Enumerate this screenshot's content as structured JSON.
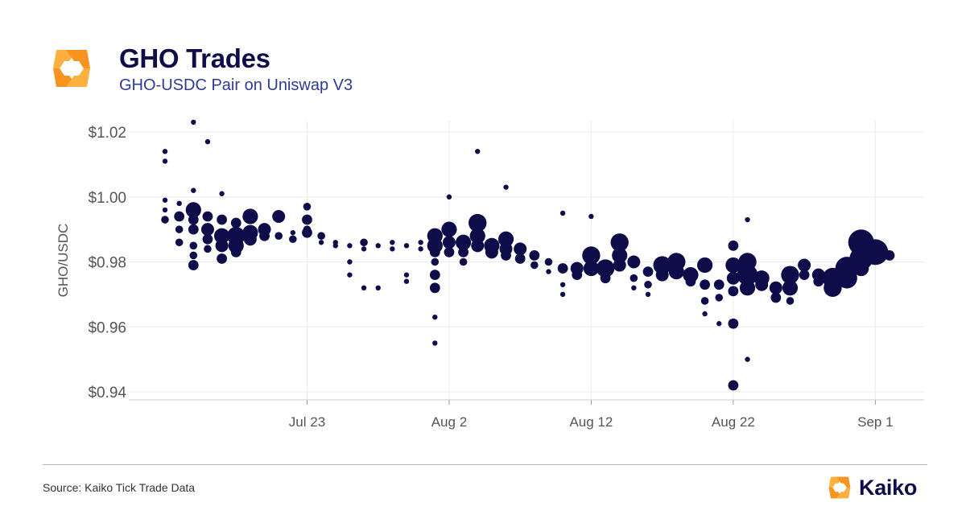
{
  "header": {
    "title": "GHO Trades",
    "subtitle": "GHO-USDC Pair on Uniswap V3"
  },
  "footer": {
    "source": "Source: Kaiko Tick Trade Data",
    "brand_name": "Kaiko"
  },
  "colors": {
    "points": "#0e0d4a",
    "logo_orange": "#f7931e",
    "logo_orange_light": "#fbb040",
    "grid": "#ebebeb"
  },
  "icons": [
    "kaiko-logo-icon"
  ],
  "chart_data": {
    "type": "scatter",
    "title": "GHO Trades",
    "subtitle": "GHO-USDC Pair on Uniswap V3",
    "ylabel": "GHO/USDC",
    "xlabel": "",
    "x_ticks": [
      "Jul 23",
      "Aug 2",
      "Aug 12",
      "Aug 22",
      "Sep 1"
    ],
    "y_ticks": [
      "$0.94",
      "$0.96",
      "$0.98",
      "$1.00",
      "$1.02"
    ],
    "ylim": [
      0.94,
      1.02
    ],
    "xlim": [
      "2023-07-13",
      "2023-09-02"
    ],
    "grid": true,
    "point_size": "trade size (relative)",
    "points": [
      {
        "x": "2023-07-13",
        "y": 1.014,
        "s": 1
      },
      {
        "x": "2023-07-13",
        "y": 1.011,
        "s": 1
      },
      {
        "x": "2023-07-13",
        "y": 0.999,
        "s": 1
      },
      {
        "x": "2023-07-13",
        "y": 0.996,
        "s": 1
      },
      {
        "x": "2023-07-13",
        "y": 0.993,
        "s": 1.5
      },
      {
        "x": "2023-07-14",
        "y": 0.994,
        "s": 2
      },
      {
        "x": "2023-07-14",
        "y": 0.99,
        "s": 1.5
      },
      {
        "x": "2023-07-14",
        "y": 0.986,
        "s": 1.5
      },
      {
        "x": "2023-07-14",
        "y": 0.998,
        "s": 1
      },
      {
        "x": "2023-07-15",
        "y": 1.023,
        "s": 1
      },
      {
        "x": "2023-07-15",
        "y": 0.996,
        "s": 3
      },
      {
        "x": "2023-07-15",
        "y": 0.993,
        "s": 2
      },
      {
        "x": "2023-07-15",
        "y": 0.99,
        "s": 2
      },
      {
        "x": "2023-07-15",
        "y": 0.985,
        "s": 1.5
      },
      {
        "x": "2023-07-15",
        "y": 0.982,
        "s": 1.5
      },
      {
        "x": "2023-07-15",
        "y": 0.979,
        "s": 2
      },
      {
        "x": "2023-07-15",
        "y": 1.002,
        "s": 1
      },
      {
        "x": "2023-07-16",
        "y": 1.017,
        "s": 1
      },
      {
        "x": "2023-07-16",
        "y": 0.994,
        "s": 2
      },
      {
        "x": "2023-07-16",
        "y": 0.99,
        "s": 2.5
      },
      {
        "x": "2023-07-16",
        "y": 0.987,
        "s": 2
      },
      {
        "x": "2023-07-16",
        "y": 0.984,
        "s": 1.5
      },
      {
        "x": "2023-07-17",
        "y": 1.001,
        "s": 1
      },
      {
        "x": "2023-07-17",
        "y": 0.993,
        "s": 2
      },
      {
        "x": "2023-07-17",
        "y": 0.988,
        "s": 3
      },
      {
        "x": "2023-07-17",
        "y": 0.985,
        "s": 2.5
      },
      {
        "x": "2023-07-17",
        "y": 0.981,
        "s": 2
      },
      {
        "x": "2023-07-18",
        "y": 0.992,
        "s": 2
      },
      {
        "x": "2023-07-18",
        "y": 0.988,
        "s": 3.5
      },
      {
        "x": "2023-07-18",
        "y": 0.985,
        "s": 3
      },
      {
        "x": "2023-07-18",
        "y": 0.983,
        "s": 2
      },
      {
        "x": "2023-07-19",
        "y": 0.994,
        "s": 3
      },
      {
        "x": "2023-07-19",
        "y": 0.989,
        "s": 3
      },
      {
        "x": "2023-07-19",
        "y": 0.987,
        "s": 2.5
      },
      {
        "x": "2023-07-20",
        "y": 0.99,
        "s": 2.5
      },
      {
        "x": "2023-07-20",
        "y": 0.988,
        "s": 2
      },
      {
        "x": "2023-07-21",
        "y": 0.994,
        "s": 2.5
      },
      {
        "x": "2023-07-21",
        "y": 0.988,
        "s": 1.5
      },
      {
        "x": "2023-07-22",
        "y": 0.987,
        "s": 1.5
      },
      {
        "x": "2023-07-22",
        "y": 0.989,
        "s": 1
      },
      {
        "x": "2023-07-23",
        "y": 0.997,
        "s": 1.5
      },
      {
        "x": "2023-07-23",
        "y": 0.993,
        "s": 2
      },
      {
        "x": "2023-07-23",
        "y": 0.989,
        "s": 2
      },
      {
        "x": "2023-07-23",
        "y": 0.99,
        "s": 1.5
      },
      {
        "x": "2023-07-24",
        "y": 0.988,
        "s": 1.5
      },
      {
        "x": "2023-07-24",
        "y": 0.986,
        "s": 1
      },
      {
        "x": "2023-07-25",
        "y": 0.986,
        "s": 1
      },
      {
        "x": "2023-07-25",
        "y": 0.985,
        "s": 1
      },
      {
        "x": "2023-07-26",
        "y": 0.985,
        "s": 1
      },
      {
        "x": "2023-07-26",
        "y": 0.98,
        "s": 1
      },
      {
        "x": "2023-07-26",
        "y": 0.976,
        "s": 1
      },
      {
        "x": "2023-07-27",
        "y": 0.986,
        "s": 1.5
      },
      {
        "x": "2023-07-27",
        "y": 0.984,
        "s": 1
      },
      {
        "x": "2023-07-27",
        "y": 0.972,
        "s": 1
      },
      {
        "x": "2023-07-28",
        "y": 0.985,
        "s": 1
      },
      {
        "x": "2023-07-28",
        "y": 0.972,
        "s": 1
      },
      {
        "x": "2023-07-29",
        "y": 0.986,
        "s": 1
      },
      {
        "x": "2023-07-29",
        "y": 0.984,
        "s": 1
      },
      {
        "x": "2023-07-30",
        "y": 0.985,
        "s": 1
      },
      {
        "x": "2023-07-30",
        "y": 0.974,
        "s": 1
      },
      {
        "x": "2023-07-30",
        "y": 0.976,
        "s": 1
      },
      {
        "x": "2023-07-31",
        "y": 0.986,
        "s": 1
      },
      {
        "x": "2023-07-31",
        "y": 0.984,
        "s": 1
      },
      {
        "x": "2023-08-01",
        "y": 0.988,
        "s": 3
      },
      {
        "x": "2023-08-01",
        "y": 0.985,
        "s": 3
      },
      {
        "x": "2023-08-01",
        "y": 0.983,
        "s": 2
      },
      {
        "x": "2023-08-01",
        "y": 0.976,
        "s": 2
      },
      {
        "x": "2023-08-01",
        "y": 0.972,
        "s": 2
      },
      {
        "x": "2023-08-01",
        "y": 0.963,
        "s": 1
      },
      {
        "x": "2023-08-01",
        "y": 0.955,
        "s": 1
      },
      {
        "x": "2023-08-01",
        "y": 0.98,
        "s": 1.5
      },
      {
        "x": "2023-08-02",
        "y": 1.0,
        "s": 1
      },
      {
        "x": "2023-08-02",
        "y": 0.99,
        "s": 3
      },
      {
        "x": "2023-08-02",
        "y": 0.986,
        "s": 2.5
      },
      {
        "x": "2023-08-02",
        "y": 0.983,
        "s": 2
      },
      {
        "x": "2023-08-03",
        "y": 0.986,
        "s": 3
      },
      {
        "x": "2023-08-03",
        "y": 0.983,
        "s": 2
      },
      {
        "x": "2023-08-03",
        "y": 0.98,
        "s": 1.5
      },
      {
        "x": "2023-08-04",
        "y": 1.014,
        "s": 1
      },
      {
        "x": "2023-08-04",
        "y": 0.992,
        "s": 3.5
      },
      {
        "x": "2023-08-04",
        "y": 0.988,
        "s": 3
      },
      {
        "x": "2023-08-04",
        "y": 0.985,
        "s": 2.5
      },
      {
        "x": "2023-08-05",
        "y": 0.985,
        "s": 3
      },
      {
        "x": "2023-08-05",
        "y": 0.983,
        "s": 2.5
      },
      {
        "x": "2023-08-06",
        "y": 1.003,
        "s": 1
      },
      {
        "x": "2023-08-06",
        "y": 0.987,
        "s": 3
      },
      {
        "x": "2023-08-06",
        "y": 0.984,
        "s": 2.5
      },
      {
        "x": "2023-08-06",
        "y": 0.982,
        "s": 2
      },
      {
        "x": "2023-08-07",
        "y": 0.984,
        "s": 2.5
      },
      {
        "x": "2023-08-07",
        "y": 0.981,
        "s": 2
      },
      {
        "x": "2023-08-08",
        "y": 0.982,
        "s": 2
      },
      {
        "x": "2023-08-08",
        "y": 0.979,
        "s": 1.5
      },
      {
        "x": "2023-08-09",
        "y": 0.98,
        "s": 1.5
      },
      {
        "x": "2023-08-09",
        "y": 0.977,
        "s": 1
      },
      {
        "x": "2023-08-10",
        "y": 0.978,
        "s": 2
      },
      {
        "x": "2023-08-10",
        "y": 0.973,
        "s": 1
      },
      {
        "x": "2023-08-10",
        "y": 0.97,
        "s": 1
      },
      {
        "x": "2023-08-10",
        "y": 0.995,
        "s": 1
      },
      {
        "x": "2023-08-11",
        "y": 0.978,
        "s": 2.5
      },
      {
        "x": "2023-08-11",
        "y": 0.976,
        "s": 2
      },
      {
        "x": "2023-08-12",
        "y": 0.982,
        "s": 3.5
      },
      {
        "x": "2023-08-12",
        "y": 0.978,
        "s": 3
      },
      {
        "x": "2023-08-12",
        "y": 0.994,
        "s": 1
      },
      {
        "x": "2023-08-13",
        "y": 0.978,
        "s": 3.5
      },
      {
        "x": "2023-08-13",
        "y": 0.975,
        "s": 2
      },
      {
        "x": "2023-08-14",
        "y": 0.986,
        "s": 3.5
      },
      {
        "x": "2023-08-14",
        "y": 0.982,
        "s": 3
      },
      {
        "x": "2023-08-14",
        "y": 0.979,
        "s": 2.5
      },
      {
        "x": "2023-08-15",
        "y": 0.98,
        "s": 2.5
      },
      {
        "x": "2023-08-15",
        "y": 0.975,
        "s": 1.5
      },
      {
        "x": "2023-08-15",
        "y": 0.972,
        "s": 1
      },
      {
        "x": "2023-08-16",
        "y": 0.977,
        "s": 2
      },
      {
        "x": "2023-08-16",
        "y": 0.973,
        "s": 1.5
      },
      {
        "x": "2023-08-16",
        "y": 0.97,
        "s": 1
      },
      {
        "x": "2023-08-17",
        "y": 0.979,
        "s": 3.5
      },
      {
        "x": "2023-08-17",
        "y": 0.976,
        "s": 2.5
      },
      {
        "x": "2023-08-18",
        "y": 0.98,
        "s": 3.5
      },
      {
        "x": "2023-08-18",
        "y": 0.977,
        "s": 3
      },
      {
        "x": "2023-08-19",
        "y": 0.976,
        "s": 3
      },
      {
        "x": "2023-08-19",
        "y": 0.974,
        "s": 2
      },
      {
        "x": "2023-08-20",
        "y": 0.979,
        "s": 3
      },
      {
        "x": "2023-08-20",
        "y": 0.973,
        "s": 2
      },
      {
        "x": "2023-08-20",
        "y": 0.968,
        "s": 1.5
      },
      {
        "x": "2023-08-20",
        "y": 0.964,
        "s": 1
      },
      {
        "x": "2023-08-21",
        "y": 0.973,
        "s": 2
      },
      {
        "x": "2023-08-21",
        "y": 0.969,
        "s": 1.5
      },
      {
        "x": "2023-08-21",
        "y": 0.961,
        "s": 1
      },
      {
        "x": "2023-08-22",
        "y": 0.979,
        "s": 3
      },
      {
        "x": "2023-08-22",
        "y": 0.975,
        "s": 2.5
      },
      {
        "x": "2023-08-22",
        "y": 0.971,
        "s": 2
      },
      {
        "x": "2023-08-22",
        "y": 0.961,
        "s": 2
      },
      {
        "x": "2023-08-22",
        "y": 0.942,
        "s": 2
      },
      {
        "x": "2023-08-22",
        "y": 0.985,
        "s": 2
      },
      {
        "x": "2023-08-23",
        "y": 0.98,
        "s": 3.5
      },
      {
        "x": "2023-08-23",
        "y": 0.976,
        "s": 4
      },
      {
        "x": "2023-08-23",
        "y": 0.972,
        "s": 3
      },
      {
        "x": "2023-08-23",
        "y": 0.95,
        "s": 1
      },
      {
        "x": "2023-08-23",
        "y": 0.993,
        "s": 1
      },
      {
        "x": "2023-08-24",
        "y": 0.975,
        "s": 3
      },
      {
        "x": "2023-08-24",
        "y": 0.973,
        "s": 2.5
      },
      {
        "x": "2023-08-25",
        "y": 0.972,
        "s": 2.5
      },
      {
        "x": "2023-08-25",
        "y": 0.969,
        "s": 2
      },
      {
        "x": "2023-08-26",
        "y": 0.976,
        "s": 3.5
      },
      {
        "x": "2023-08-26",
        "y": 0.972,
        "s": 3
      },
      {
        "x": "2023-08-26",
        "y": 0.968,
        "s": 1.5
      },
      {
        "x": "2023-08-27",
        "y": 0.979,
        "s": 2.5
      },
      {
        "x": "2023-08-27",
        "y": 0.976,
        "s": 2
      },
      {
        "x": "2023-08-28",
        "y": 0.976,
        "s": 2.5
      },
      {
        "x": "2023-08-28",
        "y": 0.974,
        "s": 2
      },
      {
        "x": "2023-08-29",
        "y": 0.975,
        "s": 4
      },
      {
        "x": "2023-08-29",
        "y": 0.972,
        "s": 3.5
      },
      {
        "x": "2023-08-30",
        "y": 0.978,
        "s": 4.5
      },
      {
        "x": "2023-08-30",
        "y": 0.975,
        "s": 4
      },
      {
        "x": "2023-08-31",
        "y": 0.986,
        "s": 5
      },
      {
        "x": "2023-08-31",
        "y": 0.981,
        "s": 4.5
      },
      {
        "x": "2023-08-31",
        "y": 0.978,
        "s": 3
      },
      {
        "x": "2023-09-01",
        "y": 0.983,
        "s": 5
      },
      {
        "x": "2023-09-01",
        "y": 0.982,
        "s": 3
      },
      {
        "x": "2023-09-02",
        "y": 0.982,
        "s": 2
      }
    ]
  }
}
